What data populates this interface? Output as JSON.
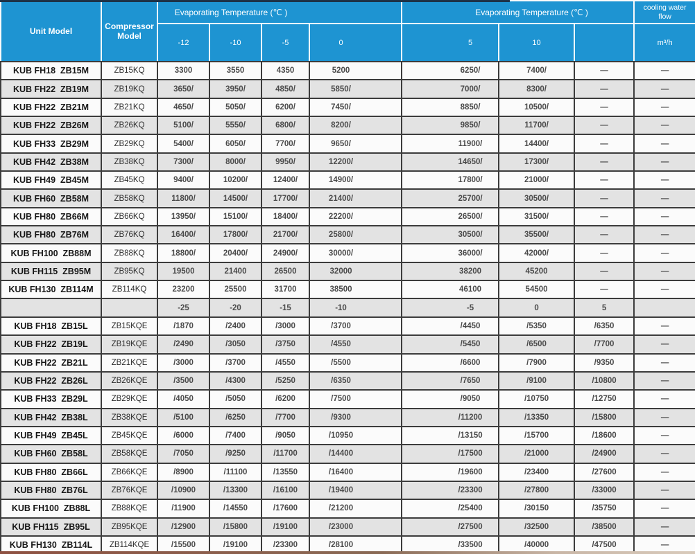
{
  "colors": {
    "header_blue": "#1e94d2",
    "row_white": "#fbfbfb",
    "row_alt_gray": "#e3e3e3",
    "border_dark": "#3c3c3c",
    "header_border_white": "#fafafa",
    "top_edge_navy": "#1d3247",
    "bottom_edge_brown": "#8a6a55"
  },
  "table": {
    "headers": {
      "unit_model": "Unit Model",
      "compressor_model": "Compressor Model",
      "evap_left": "Evaporating Temperature (℃ )",
      "evap_right": "Evaporating Temperature (℃ )",
      "cooling_water_flow": "cooling water flow",
      "flow_unit": "m³/h"
    },
    "upper_temp_columns": [
      "-12",
      "-10",
      "-5",
      "0",
      "5",
      "10",
      ""
    ],
    "mid_temp_columns": [
      "-25",
      "-20",
      "-15",
      "-10",
      "-5",
      "0",
      "5"
    ],
    "upper_rows": [
      {
        "unit_model": "KUB FH18  ZB15M",
        "compressor": "ZB15KQ",
        "values": [
          "3300",
          "3550",
          "4350",
          "5200",
          "6250/",
          "7400/",
          "—"
        ],
        "flow": "—"
      },
      {
        "unit_model": "KUB FH22  ZB19M",
        "compressor": "ZB19KQ",
        "values": [
          "3650/",
          "3950/",
          "4850/",
          "5850/",
          "7000/",
          "8300/",
          "—"
        ],
        "flow": "—"
      },
      {
        "unit_model": "KUB FH22  ZB21M",
        "compressor": "ZB21KQ",
        "values": [
          "4650/",
          "5050/",
          "6200/",
          "7450/",
          "8850/",
          "10500/",
          "—"
        ],
        "flow": "—"
      },
      {
        "unit_model": "KUB FH22  ZB26M",
        "compressor": "ZB26KQ",
        "values": [
          "5100/",
          "5550/",
          "6800/",
          "8200/",
          "9850/",
          "11700/",
          "—"
        ],
        "flow": "—"
      },
      {
        "unit_model": "KUB FH33  ZB29M",
        "compressor": "ZB29KQ",
        "values": [
          "5400/",
          "6050/",
          "7700/",
          "9650/",
          "11900/",
          "14400/",
          "—"
        ],
        "flow": "—"
      },
      {
        "unit_model": "KUB FH42  ZB38M",
        "compressor": "ZB38KQ",
        "values": [
          "7300/",
          "8000/",
          "9950/",
          "12200/",
          "14650/",
          "17300/",
          "—"
        ],
        "flow": "—"
      },
      {
        "unit_model": "KUB FH49  ZB45M",
        "compressor": "ZB45KQ",
        "values": [
          "9400/",
          "10200/",
          "12400/",
          "14900/",
          "17800/",
          "21000/",
          "—"
        ],
        "flow": "—"
      },
      {
        "unit_model": "KUB FH60  ZB58M",
        "compressor": "ZB58KQ",
        "values": [
          "11800/",
          "14500/",
          "17700/",
          "21400/",
          "25700/",
          "30500/",
          "—"
        ],
        "flow": "—"
      },
      {
        "unit_model": "KUB FH80  ZB66M",
        "compressor": "ZB66KQ",
        "values": [
          "13950/",
          "15100/",
          "18400/",
          "22200/",
          "26500/",
          "31500/",
          "—"
        ],
        "flow": "—"
      },
      {
        "unit_model": "KUB FH80  ZB76M",
        "compressor": "ZB76KQ",
        "values": [
          "16400/",
          "17800/",
          "21700/",
          "25800/",
          "30500/",
          "35500/",
          "—"
        ],
        "flow": "—"
      },
      {
        "unit_model": "KUB FH100  ZB88M",
        "compressor": "ZB88KQ",
        "values": [
          "18800/",
          "20400/",
          "24900/",
          "30000/",
          "36000/",
          "42000/",
          "—"
        ],
        "flow": "—"
      },
      {
        "unit_model": "KUB FH115  ZB95M",
        "compressor": "ZB95KQ",
        "values": [
          "19500",
          "21400",
          "26500",
          "32000",
          "38200",
          "45200",
          "—"
        ],
        "flow": "—"
      },
      {
        "unit_model": "KUB FH130  ZB114M",
        "compressor": "ZB114KQ",
        "values": [
          "23200",
          "25500",
          "31700",
          "38500",
          "46100",
          "54500",
          "—"
        ],
        "flow": "—"
      }
    ],
    "lower_rows": [
      {
        "unit_model": "KUB FH18  ZB15L",
        "compressor": "ZB15KQE",
        "values": [
          "/1870",
          "/2400",
          "/3000",
          "/3700",
          "/4450",
          "/5350",
          "/6350"
        ],
        "flow": "—"
      },
      {
        "unit_model": "KUB FH22  ZB19L",
        "compressor": "ZB19KQE",
        "values": [
          "/2490",
          "/3050",
          "/3750",
          "/4550",
          "/5450",
          "/6500",
          "/7700"
        ],
        "flow": "—"
      },
      {
        "unit_model": "KUB FH22  ZB21L",
        "compressor": "ZB21KQE",
        "values": [
          "/3000",
          "/3700",
          "/4550",
          "/5500",
          "/6600",
          "/7900",
          "/9350"
        ],
        "flow": "—"
      },
      {
        "unit_model": "KUB FH22  ZB26L",
        "compressor": "ZB26KQE",
        "values": [
          "/3500",
          "/4300",
          "/5250",
          "/6350",
          "/7650",
          "/9100",
          "/10800"
        ],
        "flow": "—"
      },
      {
        "unit_model": "KUB FH33  ZB29L",
        "compressor": "ZB29KQE",
        "values": [
          "/4050",
          "/5050",
          "/6200",
          "/7500",
          "/9050",
          "/10750",
          "/12750"
        ],
        "flow": "—"
      },
      {
        "unit_model": "KUB FH42  ZB38L",
        "compressor": "ZB38KQE",
        "values": [
          "/5100",
          "/6250",
          "/7700",
          "/9300",
          "/11200",
          "/13350",
          "/15800"
        ],
        "flow": "—"
      },
      {
        "unit_model": "KUB FH49  ZB45L",
        "compressor": "ZB45KQE",
        "values": [
          "/6000",
          "/7400",
          "/9050",
          "/10950",
          "/13150",
          "/15700",
          "/18600"
        ],
        "flow": "—"
      },
      {
        "unit_model": "KUB FH60  ZB58L",
        "compressor": "ZB58KQE",
        "values": [
          "/7050",
          "/9250",
          "/11700",
          "/14400",
          "/17500",
          "/21000",
          "/24900"
        ],
        "flow": "—"
      },
      {
        "unit_model": "KUB FH80  ZB66L",
        "compressor": "ZB66KQE",
        "values": [
          "/8900",
          "/11100",
          "/13550",
          "/16400",
          "/19600",
          "/23400",
          "/27600"
        ],
        "flow": "—"
      },
      {
        "unit_model": "KUB FH80  ZB76L",
        "compressor": "ZB76KQE",
        "values": [
          "/10900",
          "/13300",
          "/16100",
          "/19400",
          "/23300",
          "/27800",
          "/33000"
        ],
        "flow": "—"
      },
      {
        "unit_model": "KUB FH100  ZB88L",
        "compressor": "ZB88KQE",
        "values": [
          "/11900",
          "/14550",
          "/17600",
          "/21200",
          "/25400",
          "/30150",
          "/35750"
        ],
        "flow": "—"
      },
      {
        "unit_model": "KUB FH115  ZB95L",
        "compressor": "ZB95KQE",
        "values": [
          "/12900",
          "/15800",
          "/19100",
          "/23000",
          "/27500",
          "/32500",
          "/38500"
        ],
        "flow": "—"
      },
      {
        "unit_model": "KUB FH130  ZB114L",
        "compressor": "ZB114KQE",
        "values": [
          "/15500",
          "/19100",
          "/23300",
          "/28100",
          "/33500",
          "/40000",
          "/47500"
        ],
        "flow": "—"
      }
    ]
  }
}
